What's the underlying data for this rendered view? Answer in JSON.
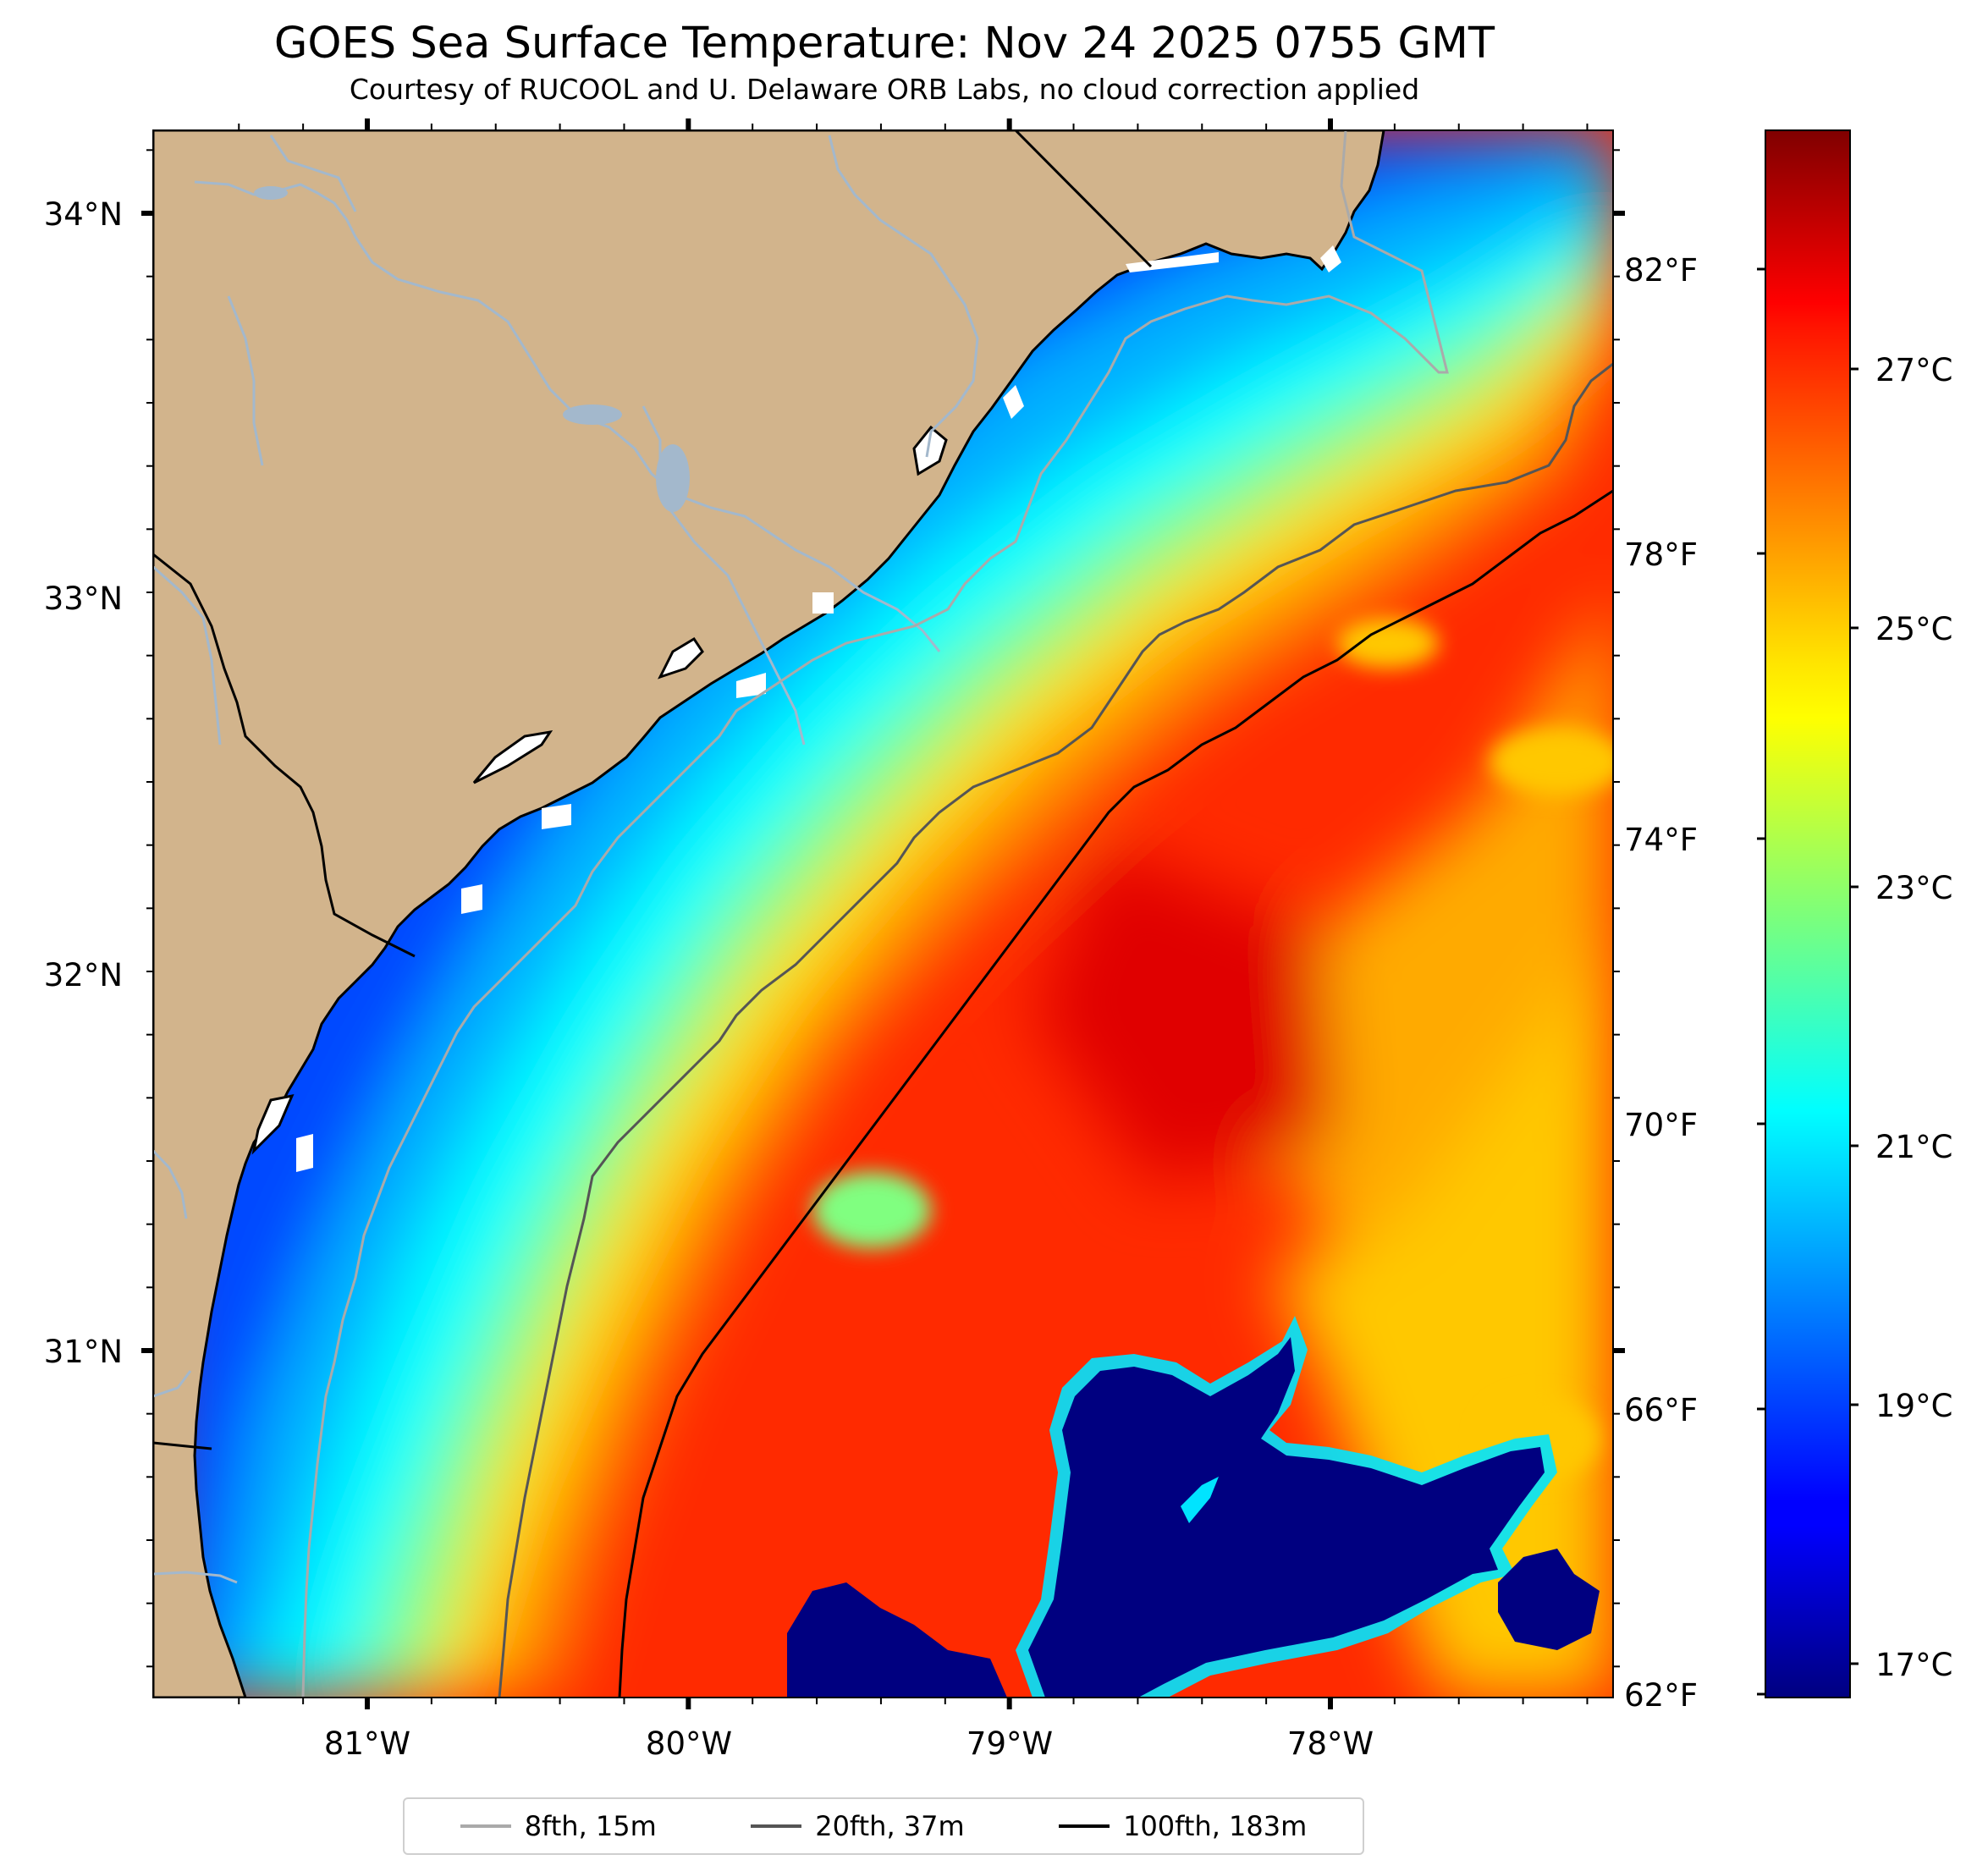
{
  "figure": {
    "title": "GOES Sea Surface Temperature: Nov 24 2025 0755 GMT",
    "subtitle": "Courtesy of RUCOOL and U. Delaware ORB Labs, no cloud correction applied"
  },
  "map": {
    "extent": {
      "lon_min": -81.67,
      "lon_max": -77.12,
      "lat_min": 30.09,
      "lat_max": 34.22
    },
    "lon_ticks": [
      "81°W",
      "80°W",
      "79°W",
      "78°W"
    ],
    "lat_ticks": [
      "34°N",
      "33°N",
      "32°N",
      "31°N"
    ],
    "colors": {
      "land": "#d2b48c",
      "cloud": "#000080",
      "river": "#a3b8cc",
      "nodata": "#ffffff"
    }
  },
  "colorbar": {
    "range_c": [
      16.6,
      28.7
    ],
    "celsius_labels": [
      "27°C",
      "25°C",
      "23°C",
      "21°C",
      "19°C",
      "17°C"
    ],
    "fahrenheit_labels": [
      "82°F",
      "78°F",
      "74°F",
      "70°F",
      "66°F",
      "62°F"
    ],
    "colormap": "jet"
  },
  "legend": {
    "items": [
      {
        "label": "8fth, 15m",
        "color": "#aaaaaa"
      },
      {
        "label": "20fth, 37m",
        "color": "#555555"
      },
      {
        "label": "100fth, 183m",
        "color": "#000000"
      }
    ]
  }
}
